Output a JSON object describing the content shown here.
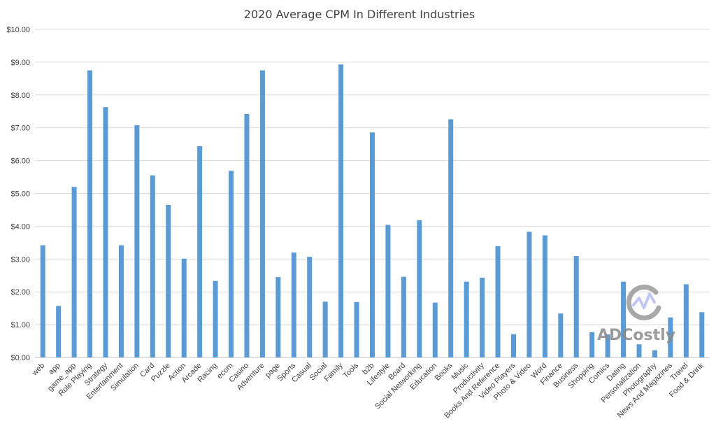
{
  "chart_data": {
    "type": "bar",
    "title": "2020 Average CPM In Different Industries",
    "xlabel": "",
    "ylabel": "",
    "ylim": [
      0,
      10
    ],
    "y_tick_labels": [
      "$0.00",
      "$1.00",
      "$2.00",
      "$3.00",
      "$4.00",
      "$5.00",
      "$6.00",
      "$7.00",
      "$8.00",
      "$9.00",
      "$10.00"
    ],
    "grid": true,
    "legend": "none",
    "bar_color": "#5b9bd5",
    "categories": [
      "web",
      "app",
      "game_app",
      "Role Playing",
      "Strategy",
      "Entertainment",
      "Simulation",
      "Card",
      "Puzzle",
      "Action",
      "Arcade",
      "Racing",
      "ecom",
      "Casino",
      "Adventure",
      "page",
      "Sports",
      "Casual",
      "Social",
      "Family",
      "Tools",
      "b2b",
      "Lifestyle",
      "Board",
      "Social Networking",
      "Education",
      "Books",
      "Music",
      "Productivity",
      "Books And Reference",
      "Video Players",
      "Photo & Video",
      "Word",
      "Finance",
      "Business",
      "Shopping",
      "Comics",
      "Dating",
      "Personalization",
      "Photography",
      "News And Magazines",
      "Travel",
      "Food & Drink"
    ],
    "values": [
      3.42,
      1.57,
      5.2,
      8.75,
      7.63,
      3.42,
      7.08,
      5.55,
      4.65,
      3.01,
      6.44,
      2.33,
      5.69,
      7.42,
      8.75,
      2.45,
      3.2,
      3.07,
      1.7,
      8.93,
      1.69,
      6.86,
      4.04,
      2.46,
      4.18,
      1.67,
      7.26,
      2.31,
      2.43,
      3.39,
      0.71,
      3.83,
      3.72,
      1.34,
      3.09,
      0.77,
      0.7,
      2.31,
      0.4,
      0.22,
      1.22,
      2.23,
      1.38
    ]
  },
  "watermark": {
    "text": "ADCostly",
    "icon": "adcostly-logo-icon"
  }
}
